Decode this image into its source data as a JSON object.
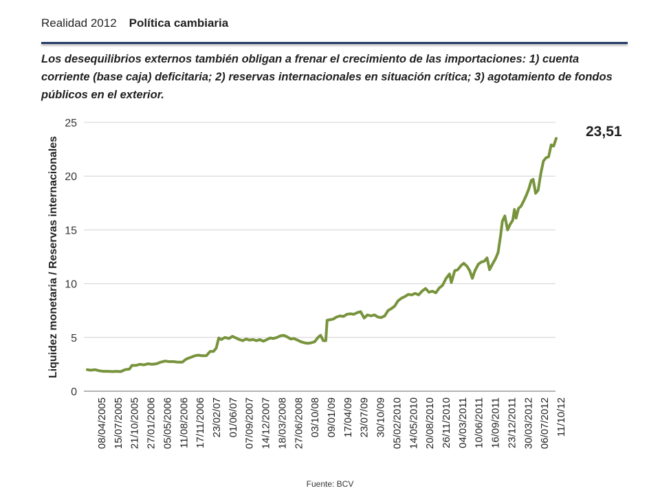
{
  "header": {
    "title": "Realidad 2012",
    "section": "Política cambiaria"
  },
  "description": "Los desequilibrios externos también obligan a frenar el crecimiento de las importaciones: 1) cuenta corriente (base caja) deficitaria; 2) reservas internacionales en situación crítica; 3) agotamiento de fondos públicos en el exterior.",
  "callout": "23,51",
  "source": "Fuente: BCV",
  "chart_data": {
    "type": "line",
    "ylabel": "Liquidez monetaria / Reservas internacionales",
    "xlabel": "",
    "ylim": [
      0,
      25
    ],
    "yticks": [
      0,
      5,
      10,
      15,
      20,
      25
    ],
    "grid": true,
    "x_ticks": [
      "08/04/2005",
      "15/07/2005",
      "21/10/2005",
      "27/01/2006",
      "05/05/2006",
      "11/08/2006",
      "17/11/2006",
      "23/02/07",
      "01/06/07",
      "07/09/2007",
      "14/12/2007",
      "18/03/2008",
      "27/06/2008",
      "03/10/08",
      "09/01/09",
      "17/04/09",
      "23/07/09",
      "30/10/09",
      "05/02/2010",
      "14/05/2010",
      "20/08/2010",
      "26/11/2010",
      "04/03/2011",
      "10/06/2011",
      "16/09/2011",
      "23/12/2011",
      "30/03/2012",
      "06/07/2012",
      "11/10/12"
    ],
    "color": "#77933c",
    "series": [
      {
        "points": [
          [
            "2005-03-05",
            2.0
          ],
          [
            "2005-03-25",
            1.95
          ],
          [
            "2005-04-20",
            2.0
          ],
          [
            "2005-05-15",
            1.9
          ],
          [
            "2005-06-10",
            1.85
          ],
          [
            "2005-07-05",
            1.85
          ],
          [
            "2005-08-01",
            1.82
          ],
          [
            "2005-08-25",
            1.85
          ],
          [
            "2005-09-20",
            1.82
          ],
          [
            "2005-10-15",
            2.0
          ],
          [
            "2005-11-10",
            2.05
          ],
          [
            "2005-11-25",
            2.4
          ],
          [
            "2005-12-20",
            2.4
          ],
          [
            "2006-01-10",
            2.5
          ],
          [
            "2006-02-05",
            2.45
          ],
          [
            "2006-03-01",
            2.55
          ],
          [
            "2006-03-25",
            2.5
          ],
          [
            "2006-04-20",
            2.55
          ],
          [
            "2006-05-15",
            2.7
          ],
          [
            "2006-06-10",
            2.8
          ],
          [
            "2006-07-05",
            2.75
          ],
          [
            "2006-08-01",
            2.75
          ],
          [
            "2006-08-25",
            2.7
          ],
          [
            "2006-09-20",
            2.7
          ],
          [
            "2006-10-15",
            3.0
          ],
          [
            "2006-11-10",
            3.15
          ],
          [
            "2006-12-05",
            3.3
          ],
          [
            "2006-12-25",
            3.35
          ],
          [
            "2007-01-15",
            3.3
          ],
          [
            "2007-02-10",
            3.3
          ],
          [
            "2007-03-05",
            3.7
          ],
          [
            "2007-03-25",
            3.7
          ],
          [
            "2007-04-10",
            4.0
          ],
          [
            "2007-04-25",
            4.95
          ],
          [
            "2007-05-10",
            4.8
          ],
          [
            "2007-06-01",
            5.0
          ],
          [
            "2007-06-25",
            4.9
          ],
          [
            "2007-07-15",
            5.1
          ],
          [
            "2007-08-05",
            4.95
          ],
          [
            "2007-08-25",
            4.8
          ],
          [
            "2007-09-15",
            4.7
          ],
          [
            "2007-10-05",
            4.85
          ],
          [
            "2007-10-25",
            4.75
          ],
          [
            "2007-11-15",
            4.8
          ],
          [
            "2007-12-05",
            4.7
          ],
          [
            "2007-12-25",
            4.8
          ],
          [
            "2008-01-15",
            4.65
          ],
          [
            "2008-02-05",
            4.8
          ],
          [
            "2008-02-25",
            4.95
          ],
          [
            "2008-03-15",
            4.9
          ],
          [
            "2008-04-05",
            5.0
          ],
          [
            "2008-04-25",
            5.15
          ],
          [
            "2008-05-15",
            5.2
          ],
          [
            "2008-06-05",
            5.05
          ],
          [
            "2008-06-25",
            4.85
          ],
          [
            "2008-07-15",
            4.9
          ],
          [
            "2008-08-05",
            4.75
          ],
          [
            "2008-08-25",
            4.6
          ],
          [
            "2008-09-15",
            4.5
          ],
          [
            "2008-10-05",
            4.45
          ],
          [
            "2008-10-25",
            4.5
          ],
          [
            "2008-11-15",
            4.6
          ],
          [
            "2008-12-05",
            5.0
          ],
          [
            "2008-12-20",
            5.2
          ],
          [
            "2009-01-05",
            4.7
          ],
          [
            "2009-01-20",
            4.7
          ],
          [
            "2009-01-28",
            6.6
          ],
          [
            "2009-02-15",
            6.65
          ],
          [
            "2009-03-05",
            6.7
          ],
          [
            "2009-03-25",
            6.9
          ],
          [
            "2009-04-15",
            7.0
          ],
          [
            "2009-05-05",
            6.95
          ],
          [
            "2009-05-25",
            7.15
          ],
          [
            "2009-06-15",
            7.2
          ],
          [
            "2009-07-05",
            7.15
          ],
          [
            "2009-07-25",
            7.3
          ],
          [
            "2009-08-15",
            7.4
          ],
          [
            "2009-09-05",
            6.8
          ],
          [
            "2009-09-25",
            7.1
          ],
          [
            "2009-10-15",
            7.0
          ],
          [
            "2009-11-05",
            7.1
          ],
          [
            "2009-11-25",
            6.9
          ],
          [
            "2009-12-15",
            6.85
          ],
          [
            "2010-01-05",
            7.0
          ],
          [
            "2010-01-25",
            7.5
          ],
          [
            "2010-02-15",
            7.7
          ],
          [
            "2010-03-05",
            7.9
          ],
          [
            "2010-03-25",
            8.4
          ],
          [
            "2010-04-15",
            8.65
          ],
          [
            "2010-05-05",
            8.8
          ],
          [
            "2010-05-25",
            9.0
          ],
          [
            "2010-06-15",
            8.95
          ],
          [
            "2010-07-05",
            9.1
          ],
          [
            "2010-07-25",
            8.95
          ],
          [
            "2010-08-15",
            9.3
          ],
          [
            "2010-09-05",
            9.55
          ],
          [
            "2010-09-25",
            9.2
          ],
          [
            "2010-10-15",
            9.3
          ],
          [
            "2010-11-05",
            9.15
          ],
          [
            "2010-11-25",
            9.6
          ],
          [
            "2010-12-15",
            9.85
          ],
          [
            "2011-01-05",
            10.5
          ],
          [
            "2011-01-25",
            10.9
          ],
          [
            "2011-02-05",
            10.1
          ],
          [
            "2011-02-25",
            11.2
          ],
          [
            "2011-03-15",
            11.3
          ],
          [
            "2011-04-05",
            11.7
          ],
          [
            "2011-04-20",
            11.9
          ],
          [
            "2011-05-10",
            11.6
          ],
          [
            "2011-05-25",
            11.2
          ],
          [
            "2011-06-10",
            10.5
          ],
          [
            "2011-06-25",
            11.2
          ],
          [
            "2011-07-15",
            11.8
          ],
          [
            "2011-08-01",
            12.0
          ],
          [
            "2011-08-20",
            12.1
          ],
          [
            "2011-09-05",
            12.4
          ],
          [
            "2011-09-20",
            11.3
          ],
          [
            "2011-10-10",
            11.9
          ],
          [
            "2011-10-25",
            12.3
          ],
          [
            "2011-11-10",
            12.9
          ],
          [
            "2011-11-25",
            14.5
          ],
          [
            "2011-12-05",
            15.8
          ],
          [
            "2011-12-20",
            16.3
          ],
          [
            "2012-01-05",
            15.0
          ],
          [
            "2012-01-20",
            15.5
          ],
          [
            "2012-02-05",
            15.9
          ],
          [
            "2012-02-15",
            16.9
          ],
          [
            "2012-02-25",
            16.1
          ],
          [
            "2012-03-10",
            17.0
          ],
          [
            "2012-03-25",
            17.2
          ],
          [
            "2012-04-10",
            17.7
          ],
          [
            "2012-04-25",
            18.2
          ],
          [
            "2012-05-10",
            18.8
          ],
          [
            "2012-05-25",
            19.6
          ],
          [
            "2012-06-05",
            19.7
          ],
          [
            "2012-06-20",
            18.4
          ],
          [
            "2012-07-05",
            18.7
          ],
          [
            "2012-07-20",
            20.2
          ],
          [
            "2012-08-05",
            21.4
          ],
          [
            "2012-08-20",
            21.7
          ],
          [
            "2012-09-05",
            21.8
          ],
          [
            "2012-09-20",
            22.9
          ],
          [
            "2012-10-05",
            22.8
          ],
          [
            "2012-10-20",
            23.51
          ]
        ]
      }
    ]
  }
}
